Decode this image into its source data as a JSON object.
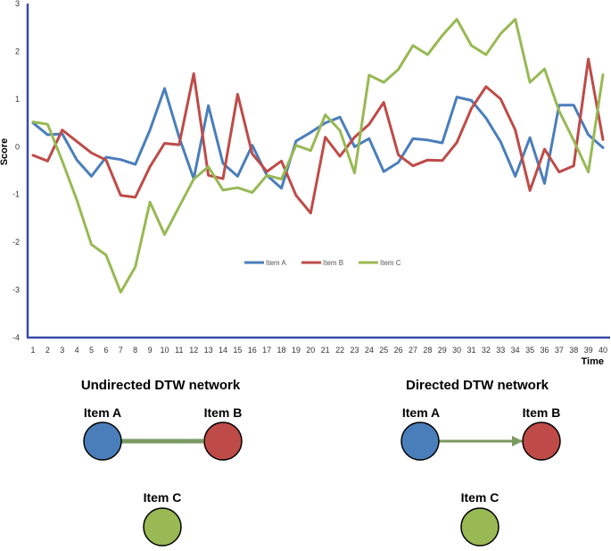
{
  "chart_data": {
    "type": "line",
    "title": "",
    "xlabel": "Time",
    "ylabel": "Score",
    "ylim": [
      -4,
      3
    ],
    "yticks": [
      "3",
      "2",
      "1",
      "0",
      "-1",
      "-2",
      "-3",
      "-4"
    ],
    "x": [
      "1",
      "2",
      "3",
      "4",
      "5",
      "6",
      "7",
      "8",
      "9",
      "10",
      "11",
      "12",
      "13",
      "14",
      "15",
      "16",
      "17",
      "18",
      "19",
      "20",
      "21",
      "22",
      "23",
      "24",
      "25",
      "26",
      "27",
      "28",
      "29",
      "30",
      "31",
      "32",
      "33",
      "34",
      "35",
      "36",
      "37",
      "38",
      "39",
      "40"
    ],
    "grid": false,
    "legend": "center",
    "series": [
      {
        "name": "Item A",
        "color": "#4a7ebb",
        "values": [
          0.5,
          0.25,
          0.27,
          -0.28,
          -0.62,
          -0.22,
          -0.27,
          -0.37,
          0.35,
          1.22,
          0.2,
          -0.67,
          0.86,
          -0.35,
          -0.62,
          0.03,
          -0.6,
          -0.87,
          0.12,
          0.3,
          0.5,
          0.62,
          0.0,
          0.17,
          -0.52,
          -0.33,
          0.17,
          0.14,
          0.08,
          1.04,
          0.97,
          0.6,
          0.1,
          -0.62,
          0.19,
          -0.77,
          0.87,
          0.87,
          0.25,
          -0.02
        ]
      },
      {
        "name": "Item B",
        "color": "#be4b48",
        "values": [
          -0.18,
          -0.3,
          0.35,
          0.11,
          -0.13,
          -0.28,
          -1.02,
          -1.06,
          -0.42,
          0.07,
          0.04,
          1.53,
          -0.6,
          -0.67,
          1.1,
          -0.15,
          -0.52,
          -0.3,
          -1.02,
          -1.39,
          0.2,
          -0.2,
          0.2,
          0.47,
          0.93,
          -0.17,
          -0.4,
          -0.28,
          -0.29,
          0.09,
          0.8,
          1.26,
          1.0,
          0.35,
          -0.92,
          -0.05,
          -0.53,
          -0.4,
          1.84,
          0.15
        ]
      },
      {
        "name": "Item C",
        "color": "#98b954",
        "values": [
          0.52,
          0.47,
          -0.3,
          -1.12,
          -2.05,
          -2.27,
          -3.05,
          -2.52,
          -1.16,
          -1.84,
          -1.26,
          -0.68,
          -0.42,
          -0.91,
          -0.86,
          -0.96,
          -0.6,
          -0.68,
          0.03,
          -0.08,
          0.67,
          0.34,
          -0.55,
          1.5,
          1.35,
          1.62,
          2.12,
          1.93,
          2.33,
          2.67,
          2.12,
          1.93,
          2.37,
          2.67,
          1.35,
          1.63,
          0.75,
          0.13,
          -0.53,
          1.51
        ]
      }
    ]
  },
  "networks": [
    {
      "title": "Undirected DTW network",
      "directed": false,
      "nodes": [
        {
          "label": "Item A",
          "color": "#4a7ebb"
        },
        {
          "label": "Item B",
          "color": "#be4b48"
        },
        {
          "label": "Item C",
          "color": "#98b954"
        }
      ]
    },
    {
      "title": "Directed DTW network",
      "directed": true,
      "nodes": [
        {
          "label": "Item A",
          "color": "#4a7ebb"
        },
        {
          "label": "Item B",
          "color": "#be4b48"
        },
        {
          "label": "Item C",
          "color": "#98b954"
        }
      ]
    }
  ],
  "edge_color": "#7a9a62"
}
